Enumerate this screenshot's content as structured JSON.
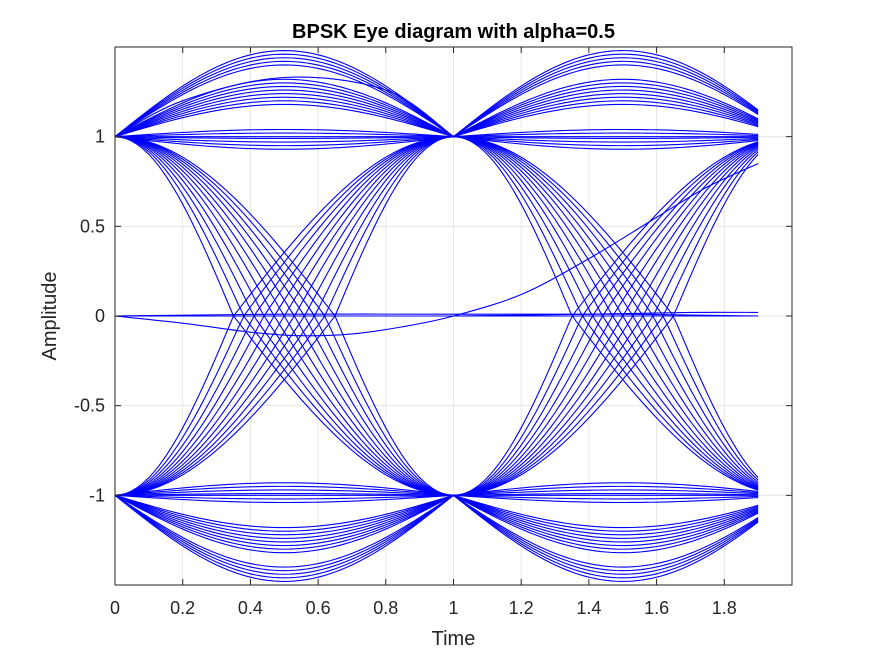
{
  "chart_data": {
    "type": "line",
    "title": "BPSK Eye diagram with alpha=0.5",
    "xlabel": "Time",
    "ylabel": "Amplitude",
    "xlim": [
      0,
      2
    ],
    "ylim": [
      -1.5,
      1.5
    ],
    "xticks": [
      0,
      0.2,
      0.4,
      0.6,
      0.8,
      1,
      1.2,
      1.4,
      1.6,
      1.8
    ],
    "xtick_labels": [
      "0",
      "0.2",
      "0.4",
      "0.6",
      "0.8",
      "1",
      "1.2",
      "1.4",
      "1.6",
      "1.8"
    ],
    "yticks": [
      1,
      0.5,
      0,
      -0.5,
      -1
    ],
    "ytick_labels": [
      "1",
      "0.5",
      "0",
      "-0.5",
      "-1"
    ],
    "grid": true,
    "trace_color": "#0000ff",
    "trace_period": 1,
    "trace_end": 1.9,
    "eye_families": {
      "from_plus_one_up": [
        1.18,
        1.2,
        1.22,
        1.24,
        1.26,
        1.28,
        1.3,
        1.32,
        1.4,
        1.42,
        1.44,
        1.46,
        1.48
      ],
      "from_plus_one_flat": [
        0.93,
        0.95,
        0.97,
        0.99,
        1.0,
        1.02,
        1.04
      ],
      "from_minus_one_down": [
        -1.18,
        -1.2,
        -1.22,
        -1.24,
        -1.26,
        -1.28,
        -1.3,
        -1.32,
        -1.4,
        -1.42,
        -1.44,
        -1.46,
        -1.48
      ],
      "from_minus_one_flat": [
        -0.93,
        -0.95,
        -0.97,
        -0.99,
        -1.0,
        -1.02,
        -1.04
      ],
      "crossing_falling": [
        0.35,
        0.38,
        0.41,
        0.44,
        0.47,
        0.5,
        0.53,
        0.56,
        0.59,
        0.62,
        0.65
      ],
      "crossing_rising": [
        0.35,
        0.38,
        0.41,
        0.44,
        0.47,
        0.5,
        0.53,
        0.56,
        0.59,
        0.62,
        0.65
      ]
    },
    "special_traces": [
      {
        "x": [
          0,
          0.2,
          0.4,
          0.55,
          0.7,
          0.85,
          1.0,
          1.2,
          1.4,
          1.6,
          1.75,
          1.9
        ],
        "y": [
          0,
          -0.04,
          -0.09,
          -0.11,
          -0.1,
          -0.06,
          0,
          0.12,
          0.32,
          0.55,
          0.72,
          0.85
        ]
      },
      {
        "x": [
          0,
          0.5,
          1.0,
          1.5,
          1.9
        ],
        "y": [
          0.0,
          0.01,
          0.01,
          0.01,
          0.0
        ]
      },
      {
        "x": [
          0,
          0.5,
          1.0,
          1.5,
          1.9
        ],
        "y": [
          0.0,
          0.0,
          0.0,
          0.0,
          0.0
        ]
      },
      {
        "x": [
          1.0,
          1.4,
          1.7,
          1.9
        ],
        "y": [
          0.0,
          0.01,
          0.02,
          0.02
        ]
      },
      {
        "x": [
          0,
          0.2,
          0.5,
          0.8,
          1.0
        ],
        "y": [
          1.0,
          1.2,
          1.33,
          1.26,
          1.0
        ]
      }
    ]
  }
}
